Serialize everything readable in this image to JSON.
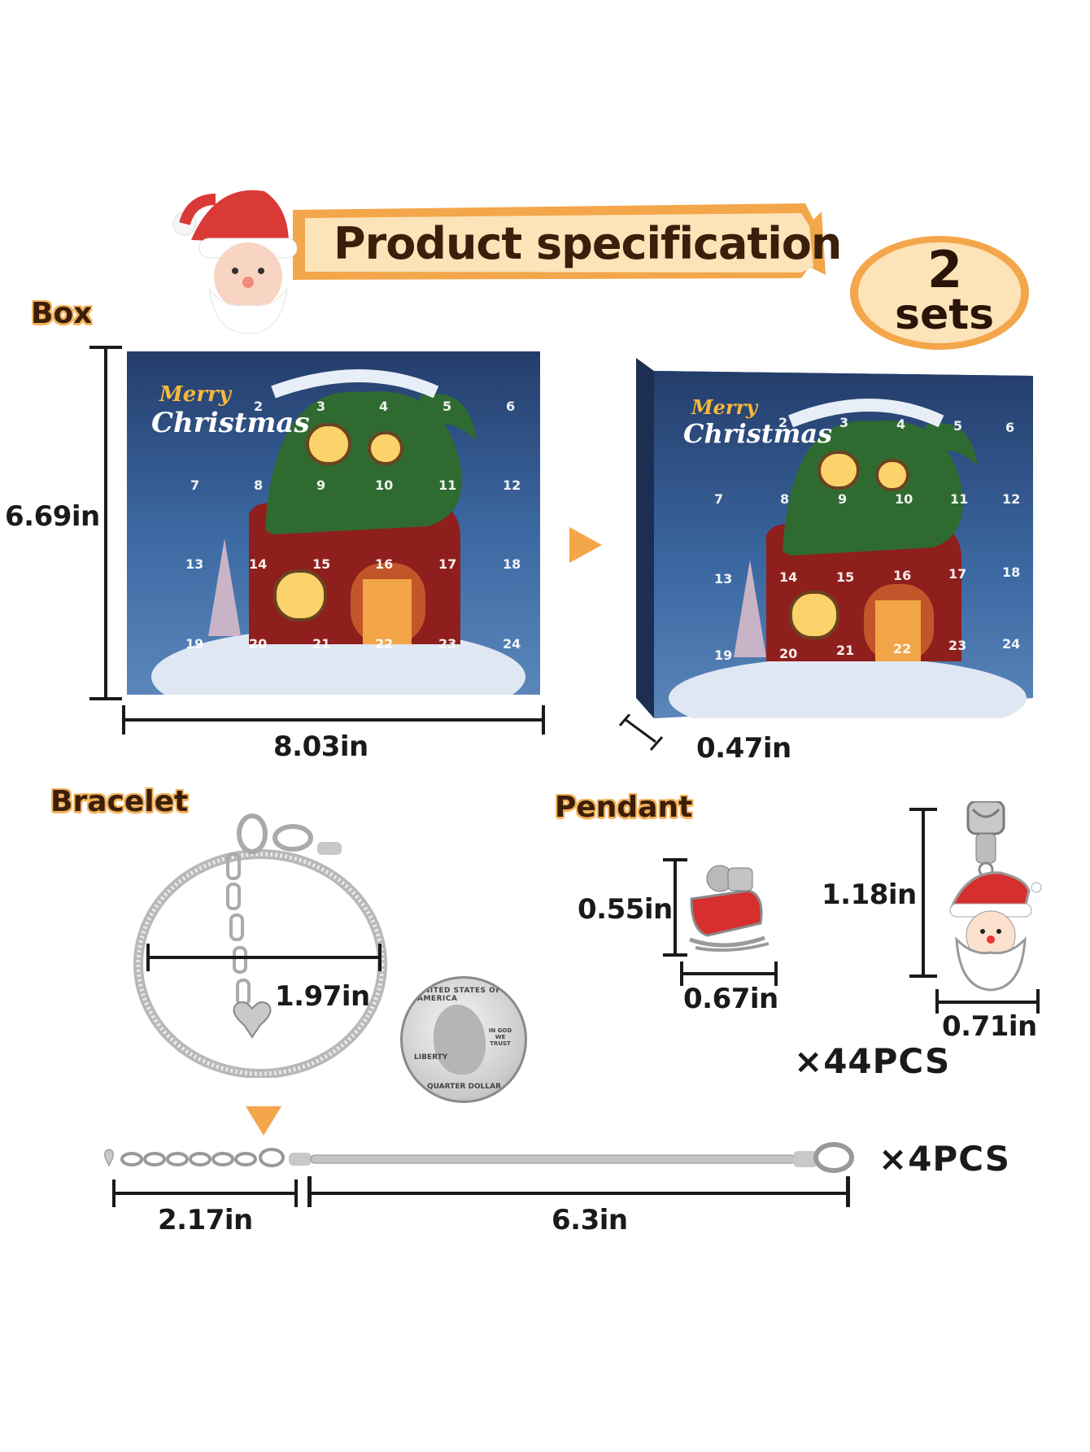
{
  "banner": {
    "title": "Product specification"
  },
  "badge": {
    "count": "2",
    "unit": "sets"
  },
  "sections": {
    "box": "Box",
    "bracelet": "Bracelet",
    "pendant": "Pendant"
  },
  "box": {
    "height": "6.69in",
    "width": "8.03in",
    "depth": "0.47in",
    "greeting_line1": "Merry",
    "greeting_line2": "Christmas",
    "doors_front": [
      "2",
      "3",
      "4",
      "5",
      "6",
      "7",
      "8",
      "9",
      "10",
      "11",
      "12",
      "13",
      "14",
      "15",
      "16",
      "17",
      "18",
      "19",
      "20",
      "21",
      "22",
      "23",
      "24"
    ],
    "doors_side": [
      "2",
      "3",
      "4",
      "5",
      "6",
      "7",
      "8",
      "9",
      "10",
      "11",
      "12",
      "13",
      "14",
      "15",
      "16",
      "17",
      "18",
      "19",
      "20",
      "21",
      "22",
      "23",
      "24"
    ]
  },
  "bracelet": {
    "inner_width": "1.97in",
    "extension_length": "2.17in",
    "chain_length": "6.3in",
    "quantity": "×4PCS",
    "coin_text_top": "UNITED STATES OF AMERICA",
    "coin_text_bottom": "QUARTER DOLLAR",
    "coin_liberty": "LIBERTY",
    "coin_motto": "IN GOD WE TRUST"
  },
  "pendant": {
    "sleigh_height": "0.55in",
    "sleigh_width": "0.67in",
    "santa_height": "1.18in",
    "santa_width": "0.71in",
    "quantity": "×44PCS"
  },
  "colors": {
    "accent_orange": "#f3a64a",
    "brand_brown": "#3b1f0b",
    "box_blue": "#2d4f86"
  }
}
